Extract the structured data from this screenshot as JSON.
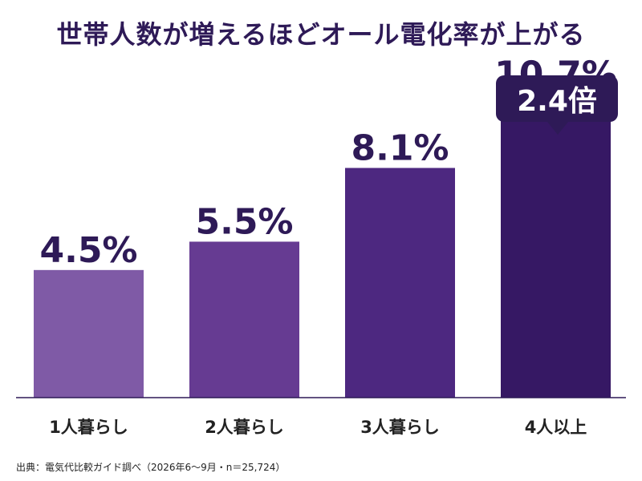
{
  "title": "世帯人数が増えるほどオール電化率が上がる",
  "callout": "2.4倍",
  "source": "出典：電気代比較ガイド調べ（2026年6〜9月・n＝25,724）",
  "colors": {
    "title": "#2e1a57",
    "bars": [
      "#7f5aa6",
      "#663b92",
      "#4d2880",
      "#361864"
    ],
    "axis": "#2e1a57"
  },
  "chart_data": {
    "type": "bar",
    "title": "世帯人数が増えるほどオール電化率が上がる",
    "categories": [
      "1人暮らし",
      "2人暮らし",
      "3人暮らし",
      "4人以上"
    ],
    "values": [
      4.5,
      5.5,
      8.1,
      10.7
    ],
    "data_labels": [
      "4.5%",
      "5.5%",
      "8.1%",
      "10.7%"
    ],
    "unit": "%",
    "ylim": [
      0,
      12.1
    ],
    "xlabel": "",
    "ylabel": "",
    "grid": false,
    "legend": "none"
  }
}
